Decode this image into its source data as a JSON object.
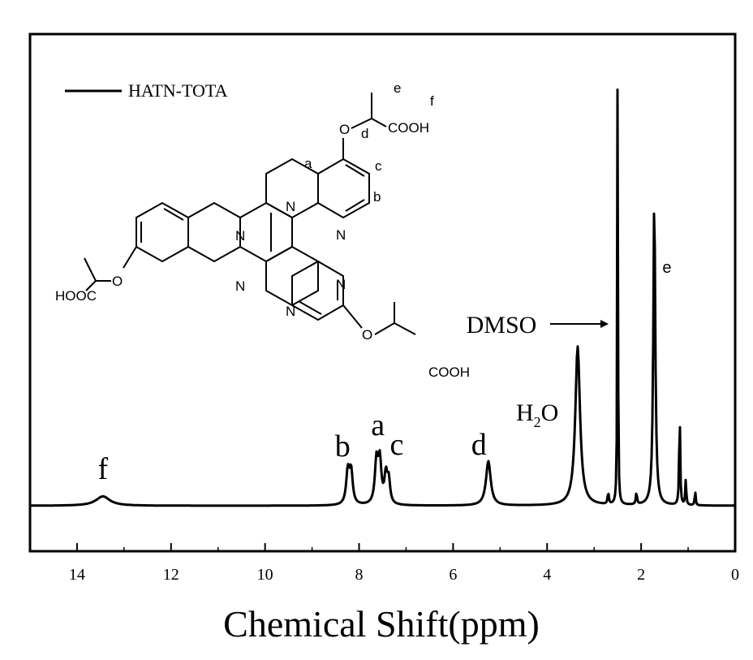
{
  "chart_data": {
    "type": "line",
    "title": "",
    "xlabel": "Chemical Shift(ppm)",
    "ylabel": "",
    "xlim": [
      15,
      0
    ],
    "x_reversed": true,
    "xticks": [
      14,
      12,
      10,
      8,
      6,
      4,
      2,
      0
    ],
    "xtick_labels": [
      "14",
      "12",
      "10",
      "8",
      "6",
      "4",
      "2",
      "0"
    ],
    "grid": false,
    "legend": {
      "position": "top-left",
      "entries": [
        "HATN-TOTA"
      ]
    },
    "series": [
      {
        "name": "HATN-TOTA",
        "peaks": [
          {
            "ppm": 13.45,
            "height": 0.02,
            "width": 0.18
          },
          {
            "ppm": 8.24,
            "height": 0.07,
            "width": 0.04
          },
          {
            "ppm": 8.17,
            "height": 0.07,
            "width": 0.04
          },
          {
            "ppm": 7.63,
            "height": 0.09,
            "width": 0.04
          },
          {
            "ppm": 7.56,
            "height": 0.09,
            "width": 0.04
          },
          {
            "ppm": 7.43,
            "height": 0.06,
            "width": 0.035
          },
          {
            "ppm": 7.37,
            "height": 0.05,
            "width": 0.035
          },
          {
            "ppm": 5.25,
            "height": 0.095,
            "width": 0.06
          },
          {
            "ppm": 3.35,
            "height": 0.34,
            "width": 0.06
          },
          {
            "ppm": 2.7,
            "height": 0.025,
            "width": 0.015
          },
          {
            "ppm": 2.5,
            "height": 1.0,
            "width": 0.008
          },
          {
            "ppm": 2.1,
            "height": 0.025,
            "width": 0.015
          },
          {
            "ppm": 1.72,
            "height": 0.66,
            "width": 0.025
          },
          {
            "ppm": 1.18,
            "height": 0.21,
            "width": 0.012
          },
          {
            "ppm": 1.05,
            "height": 0.055,
            "width": 0.012
          },
          {
            "ppm": 0.85,
            "height": 0.03,
            "width": 0.012
          }
        ]
      }
    ],
    "annotations": [
      {
        "text": "f",
        "ppm": 13.45
      },
      {
        "text": "b",
        "ppm": 8.35
      },
      {
        "text": "a",
        "ppm": 7.6
      },
      {
        "text": "c",
        "ppm": 7.2
      },
      {
        "text": "d",
        "ppm": 5.45
      },
      {
        "text": "DMSO",
        "ppm": 4.9
      },
      {
        "text": "e",
        "ppm": 1.45
      }
    ],
    "water_label": {
      "main": "H",
      "sub": "2",
      "tail": "O",
      "ppm": 4.1
    },
    "structure_labels": {
      "letters": [
        "a",
        "b",
        "c",
        "d",
        "e",
        "f"
      ],
      "acid": "COOH",
      "acid_left": "HOOC",
      "oxygen": "O",
      "nitrogen": "N"
    }
  }
}
